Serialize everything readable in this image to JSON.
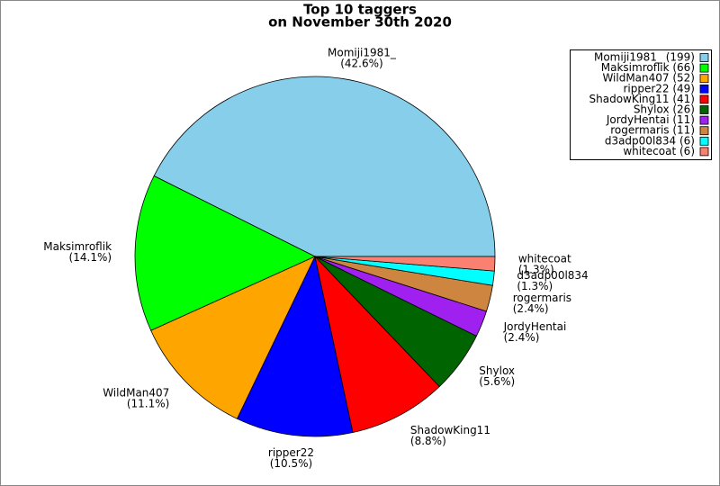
{
  "chart_data": {
    "type": "pie",
    "title": "Top 10 taggers",
    "subtitle": "on November 30th 2020",
    "categories": [
      "Momiji1981_",
      "Maksimroflik",
      "WildMan407",
      "ripper22",
      "ShadowKing11",
      "Shylox",
      "JordyHentai",
      "rogermaris",
      "d3adp00l834",
      "whitecoat"
    ],
    "values": [
      199,
      66,
      52,
      49,
      41,
      26,
      11,
      11,
      6,
      6
    ],
    "legend_labels": [
      "Momiji1981_ (199)",
      "Maksimroflik (66)",
      "WildMan407 (52)",
      "ripper22 (49)",
      "ShadowKing11 (41)",
      "Shylox (26)",
      "JordyHentai (11)",
      "rogermaris (11)",
      "d3adp00l834 (6)",
      "whitecoat (6)"
    ],
    "percentages": [
      42.6,
      14.1,
      11.1,
      10.5,
      8.8,
      5.6,
      2.4,
      2.4,
      1.3,
      1.3
    ],
    "percentage_labels": [
      "(42.6%)",
      "(14.1%)",
      "(11.1%)",
      "(10.5%)",
      "(8.8%)",
      "(5.6%)",
      "(2.4%)",
      "(2.4%)",
      "(1.3%)",
      "(1.3%)"
    ],
    "colors": [
      "#87ceeb",
      "#00ff00",
      "#ffa500",
      "#0000ff",
      "#ff0000",
      "#006400",
      "#a020f0",
      "#cd853f",
      "#00ffff",
      "#fa8072"
    ],
    "legend": "upper right"
  }
}
